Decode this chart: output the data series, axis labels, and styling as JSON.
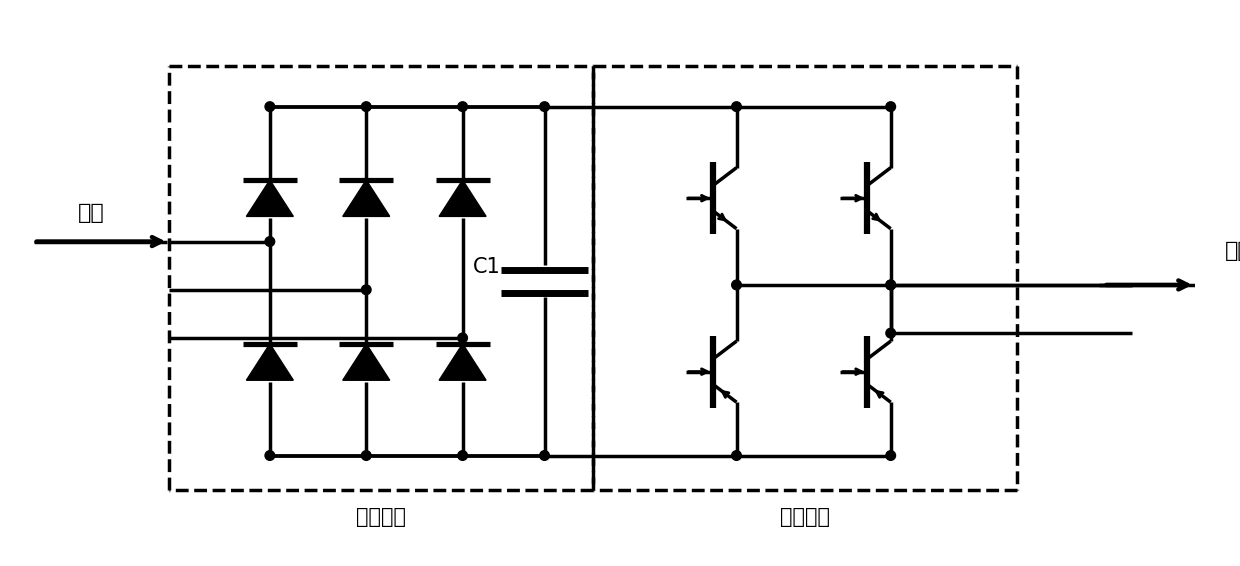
{
  "bg_color": "#ffffff",
  "line_color": "#000000",
  "input_label": "输入",
  "output_label": "输出",
  "rect1_label": "整流回路",
  "rect2_label": "逆变回路",
  "c1_label": "C1",
  "fig_width": 12.4,
  "fig_height": 5.66,
  "dpi": 100
}
